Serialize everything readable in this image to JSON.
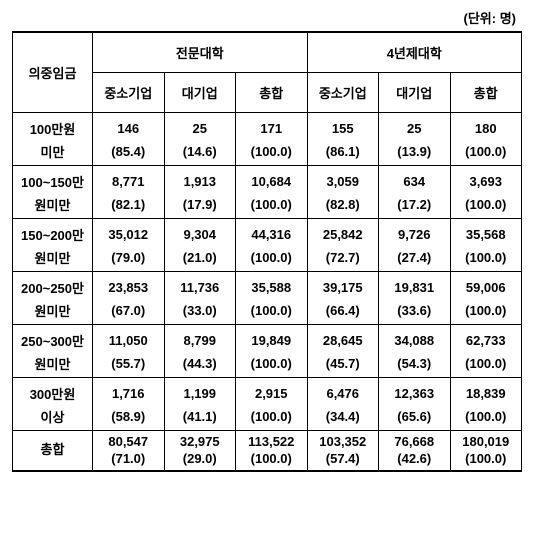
{
  "unit_label": "(단위: 명)",
  "col_headers": {
    "row_label": "의중임금",
    "group1": "전문대학",
    "group2": "4년제대학",
    "sub1": "중소기업",
    "sub2": "대기업",
    "sub3": "총합"
  },
  "rows": [
    {
      "label_line1": "100만원",
      "label_line2": "미만",
      "g1": {
        "sme": "146",
        "big": "25",
        "tot": "171",
        "sme_p": "(85.4)",
        "big_p": "(14.6)",
        "tot_p": "(100.0)"
      },
      "g2": {
        "sme": "155",
        "big": "25",
        "tot": "180",
        "sme_p": "(86.1)",
        "big_p": "(13.9)",
        "tot_p": "(100.0)"
      }
    },
    {
      "label_line1": "100~150만",
      "label_line2": "원미만",
      "g1": {
        "sme": "8,771",
        "big": "1,913",
        "tot": "10,684",
        "sme_p": "(82.1)",
        "big_p": "(17.9)",
        "tot_p": "(100.0)"
      },
      "g2": {
        "sme": "3,059",
        "big": "634",
        "tot": "3,693",
        "sme_p": "(82.8)",
        "big_p": "(17.2)",
        "tot_p": "(100.0)"
      }
    },
    {
      "label_line1": "150~200만",
      "label_line2": "원미만",
      "g1": {
        "sme": "35,012",
        "big": "9,304",
        "tot": "44,316",
        "sme_p": "(79.0)",
        "big_p": "(21.0)",
        "tot_p": "(100.0)"
      },
      "g2": {
        "sme": "25,842",
        "big": "9,726",
        "tot": "35,568",
        "sme_p": "(72.7)",
        "big_p": "(27.4)",
        "tot_p": "(100.0)"
      }
    },
    {
      "label_line1": "200~250만",
      "label_line2": "원미만",
      "g1": {
        "sme": "23,853",
        "big": "11,736",
        "tot": "35,588",
        "sme_p": "(67.0)",
        "big_p": "(33.0)",
        "tot_p": "(100.0)"
      },
      "g2": {
        "sme": "39,175",
        "big": "19,831",
        "tot": "59,006",
        "sme_p": "(66.4)",
        "big_p": "(33.6)",
        "tot_p": "(100.0)"
      }
    },
    {
      "label_line1": "250~300만",
      "label_line2": "원미만",
      "g1": {
        "sme": "11,050",
        "big": "8,799",
        "tot": "19,849",
        "sme_p": "(55.7)",
        "big_p": "(44.3)",
        "tot_p": "(100.0)"
      },
      "g2": {
        "sme": "28,645",
        "big": "34,088",
        "tot": "62,733",
        "sme_p": "(45.7)",
        "big_p": "(54.3)",
        "tot_p": "(100.0)"
      }
    },
    {
      "label_line1": "300만원",
      "label_line2": "이상",
      "g1": {
        "sme": "1,716",
        "big": "1,199",
        "tot": "2,915",
        "sme_p": "(58.9)",
        "big_p": "(41.1)",
        "tot_p": "(100.0)"
      },
      "g2": {
        "sme": "6,476",
        "big": "12,363",
        "tot": "18,839",
        "sme_p": "(34.4)",
        "big_p": "(65.6)",
        "tot_p": "(100.0)"
      }
    }
  ],
  "total": {
    "label": "총합",
    "g1": {
      "sme": "80,547",
      "big": "32,975",
      "tot": "113,522",
      "sme_p": "(71.0)",
      "big_p": "(29.0)",
      "tot_p": "(100.0)"
    },
    "g2": {
      "sme": "103,352",
      "big": "76,668",
      "tot": "180,019",
      "sme_p": "(57.4)",
      "big_p": "(42.6)",
      "tot_p": "(100.0)"
    }
  }
}
